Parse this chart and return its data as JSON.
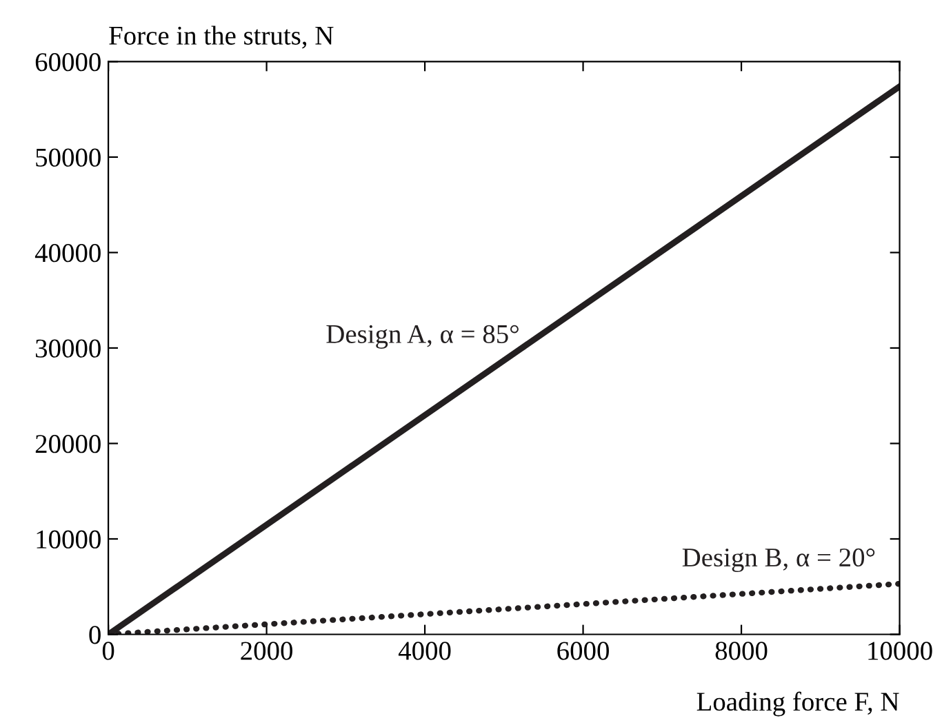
{
  "chart_data": {
    "type": "line",
    "xlabel": "Loading force F, N",
    "ylabel": "Force in the struts, N",
    "x": [
      0,
      10000
    ],
    "series": [
      {
        "name": "Design A, α = 85°",
        "color": "#231f20",
        "values": [
          0,
          57400
        ],
        "line_style": "solid"
      },
      {
        "name": "Design B, α = 20°",
        "color": "#231f20",
        "values": [
          0,
          5300
        ],
        "line_style": "dotted"
      }
    ],
    "xlim": [
      0,
      10000
    ],
    "ylim": [
      0,
      60000
    ],
    "xticks": [
      0,
      2000,
      4000,
      6000,
      8000,
      10000
    ],
    "yticks": [
      0,
      10000,
      20000,
      30000,
      40000,
      50000,
      60000
    ],
    "grid": false,
    "legend": false
  }
}
